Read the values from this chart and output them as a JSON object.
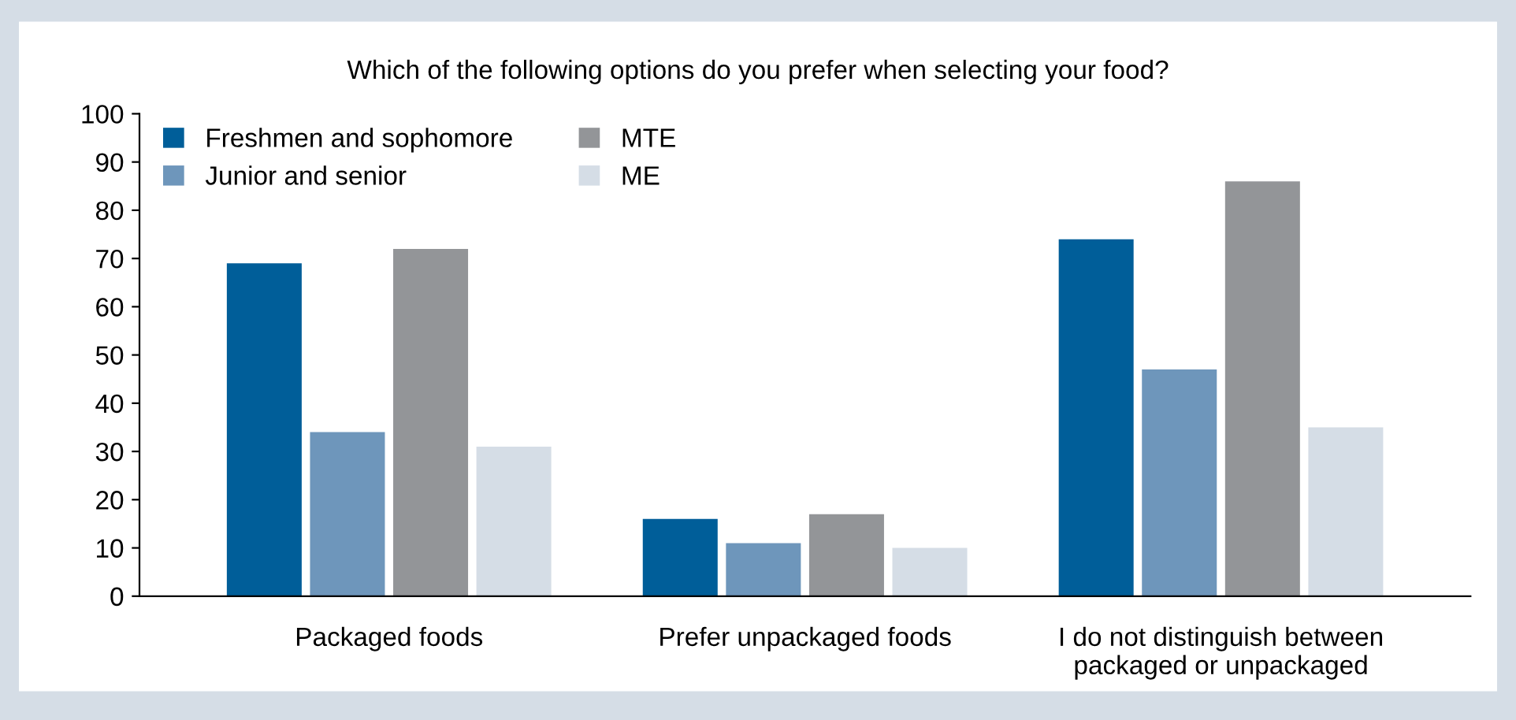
{
  "chart_data": {
    "type": "bar",
    "title": "Which of the following options do you prefer when selecting your food?",
    "categories": [
      "Packaged foods",
      "Prefer unpackaged foods",
      "I do not distinguish between\npackaged or unpackaged"
    ],
    "series": [
      {
        "name": "Freshmen and sophomore",
        "color": "#005e99",
        "values": [
          69,
          16,
          74
        ]
      },
      {
        "name": "Junior and senior",
        "color": "#6e96bb",
        "values": [
          34,
          11,
          47
        ]
      },
      {
        "name": "MTE",
        "color": "#939598",
        "values": [
          72,
          17,
          86
        ]
      },
      {
        "name": "ME",
        "color": "#d5dde6",
        "values": [
          31,
          10,
          35
        ]
      }
    ],
    "ylim": [
      0,
      100
    ],
    "yticks": [
      0,
      10,
      20,
      30,
      40,
      50,
      60,
      70,
      80,
      90,
      100
    ],
    "grid": false,
    "legend": "top left"
  }
}
